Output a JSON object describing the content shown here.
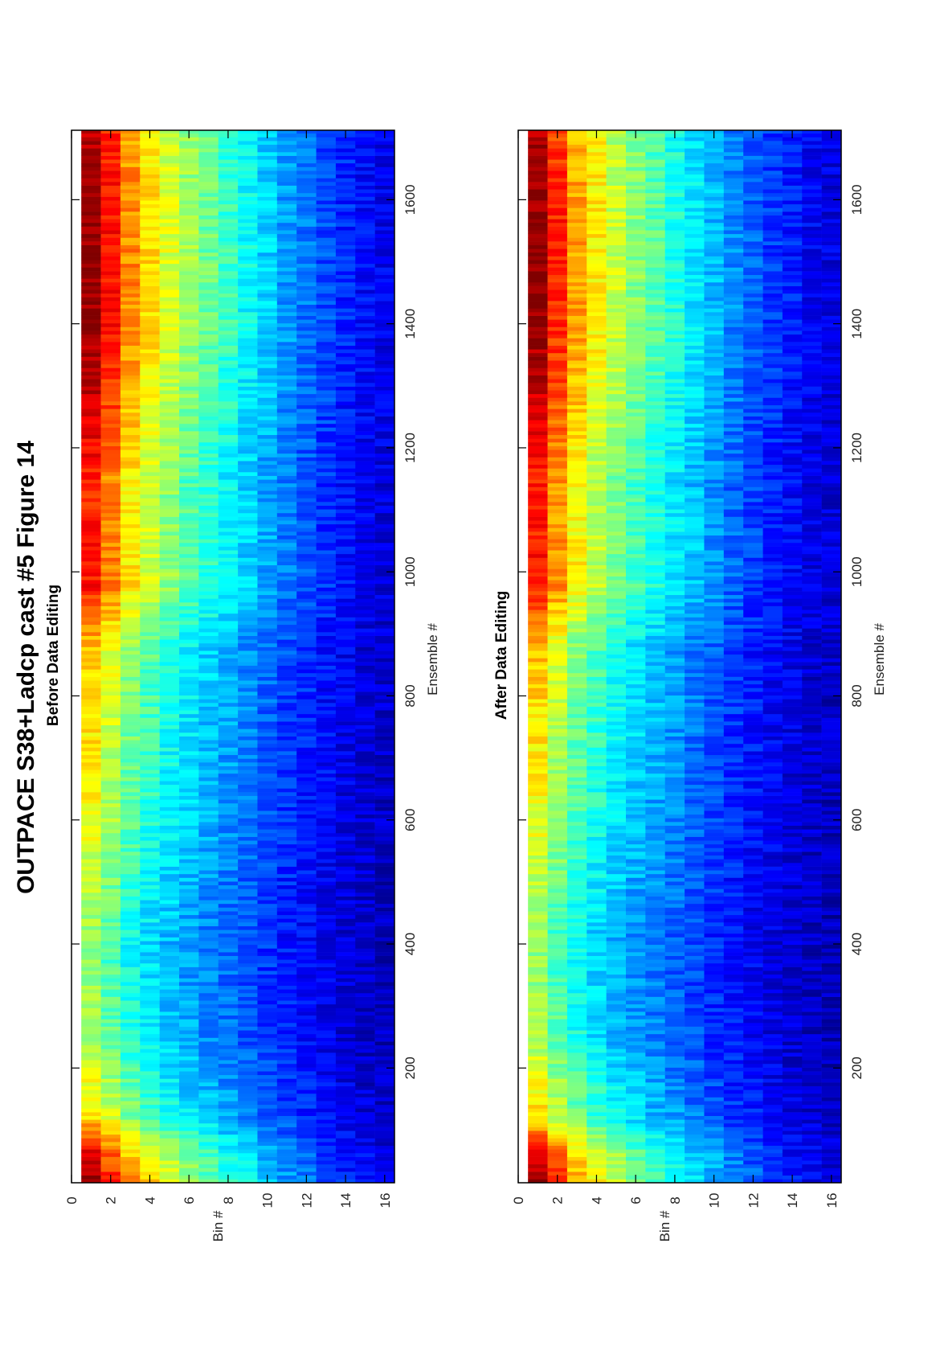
{
  "figure": {
    "title": "OUTPACE S38+Ladcp cast #5  Figure 14"
  },
  "chart_data": [
    {
      "type": "heatmap",
      "subtitle": "Before Data Editing",
      "xlabel": "Ensemble #",
      "ylabel": "Bin #",
      "xlim": [
        15,
        1712
      ],
      "ylim": [
        0,
        16.5
      ],
      "x_ticks": [
        200,
        400,
        600,
        800,
        1000,
        1200,
        1400,
        1600
      ],
      "y_ticks": [
        0,
        2,
        4,
        6,
        8,
        10,
        12,
        14,
        16
      ],
      "y_reversed": true,
      "colormap": "jet",
      "bins": [
        1,
        2,
        3,
        4,
        5,
        6,
        7,
        8,
        9,
        10,
        11,
        12,
        13,
        14,
        15,
        16
      ],
      "bin_profile_norm": [
        0.98,
        0.86,
        0.74,
        0.66,
        0.59,
        0.53,
        0.48,
        0.43,
        0.38,
        0.33,
        0.28,
        0.24,
        0.2,
        0.16,
        0.13,
        0.11
      ],
      "ensemble_breakpoints": [
        15,
        60,
        120,
        250,
        400,
        600,
        880,
        980,
        1150,
        1250,
        1400,
        1600,
        1712
      ],
      "ensemble_intensity_norm": [
        1.0,
        0.92,
        0.68,
        0.55,
        0.52,
        0.62,
        0.7,
        0.88,
        0.86,
        0.93,
        1.0,
        1.0,
        0.97
      ],
      "grid": false
    },
    {
      "type": "heatmap",
      "subtitle": "After Data Editing",
      "xlabel": "Ensemble #",
      "ylabel": "Bin #",
      "xlim": [
        15,
        1712
      ],
      "ylim": [
        0,
        16.5
      ],
      "x_ticks": [
        200,
        400,
        600,
        800,
        1000,
        1200,
        1400,
        1600
      ],
      "y_ticks": [
        0,
        2,
        4,
        6,
        8,
        10,
        12,
        14,
        16
      ],
      "y_reversed": true,
      "colormap": "jet",
      "bins": [
        1,
        2,
        3,
        4,
        5,
        6,
        7,
        8,
        9,
        10,
        11,
        12,
        13,
        14,
        15,
        16
      ],
      "bin_profile_norm": [
        0.98,
        0.84,
        0.72,
        0.64,
        0.57,
        0.51,
        0.46,
        0.41,
        0.36,
        0.31,
        0.26,
        0.22,
        0.18,
        0.15,
        0.12,
        0.1
      ],
      "ensemble_breakpoints": [
        15,
        60,
        120,
        250,
        400,
        600,
        880,
        980,
        1150,
        1250,
        1400,
        1600,
        1712
      ],
      "ensemble_intensity_norm": [
        1.0,
        0.92,
        0.68,
        0.55,
        0.52,
        0.62,
        0.7,
        0.88,
        0.86,
        0.93,
        1.0,
        1.0,
        0.97
      ],
      "grid": false
    }
  ]
}
